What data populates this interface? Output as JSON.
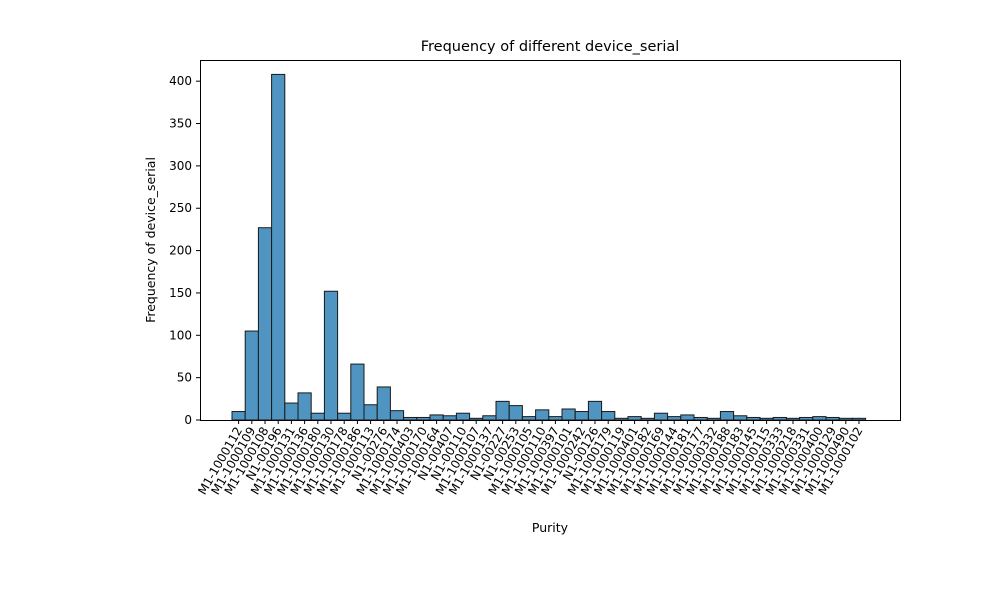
{
  "chart_data": {
    "type": "bar",
    "title": "Frequency of different device_serial",
    "xlabel": "Purity",
    "ylabel": "Frequency of device_serial",
    "ylim": [
      0,
      425
    ],
    "yticks": [
      0,
      50,
      100,
      150,
      200,
      250,
      300,
      350,
      400
    ],
    "grid": false,
    "legend": "none",
    "bar_color": "#5094c1",
    "edge_color": "#1a1a1a",
    "categories": [
      "M1-1000112",
      "M1-1000109",
      "M1-1000108",
      "N1-00196",
      "M1-1000131",
      "M1-1000136",
      "M1-1000180",
      "M1-1000130",
      "M1-1000178",
      "M1-1000186",
      "M1-1000113",
      "N1-00276",
      "M1-1000174",
      "M1-1000403",
      "M1-1000170",
      "M1-1000164",
      "N1-00407",
      "N1-00110",
      "M1-1000107",
      "M1-1000137",
      "N1-00227",
      "N1-00253",
      "M1-1000105",
      "M1-1000110",
      "M1-1000397",
      "M1-1000101",
      "M1-1000242",
      "N1-00126",
      "M1-1000179",
      "M1-1000119",
      "M1-1000401",
      "M1-1000182",
      "M1-1000169",
      "M1-1000144",
      "M1-1000181",
      "M1-1000177",
      "M1-1000332",
      "M1-1000188",
      "M1-1000183",
      "M1-1000145",
      "M1-1000115",
      "M1-1000333",
      "M1-1000218",
      "M1-1000331",
      "M1-1000400",
      "M1-1000129",
      "M1-1000490",
      "M1-1000102"
    ],
    "values": [
      10,
      105,
      227,
      408,
      20,
      32,
      8,
      152,
      8,
      66,
      18,
      39,
      11,
      3,
      3,
      6,
      5,
      8,
      2,
      5,
      22,
      17,
      4,
      12,
      4,
      13,
      10,
      22,
      10,
      2,
      4,
      2,
      8,
      4,
      6,
      3,
      2,
      10,
      5,
      3,
      2,
      3,
      2,
      3,
      4,
      3,
      2,
      2
    ]
  }
}
